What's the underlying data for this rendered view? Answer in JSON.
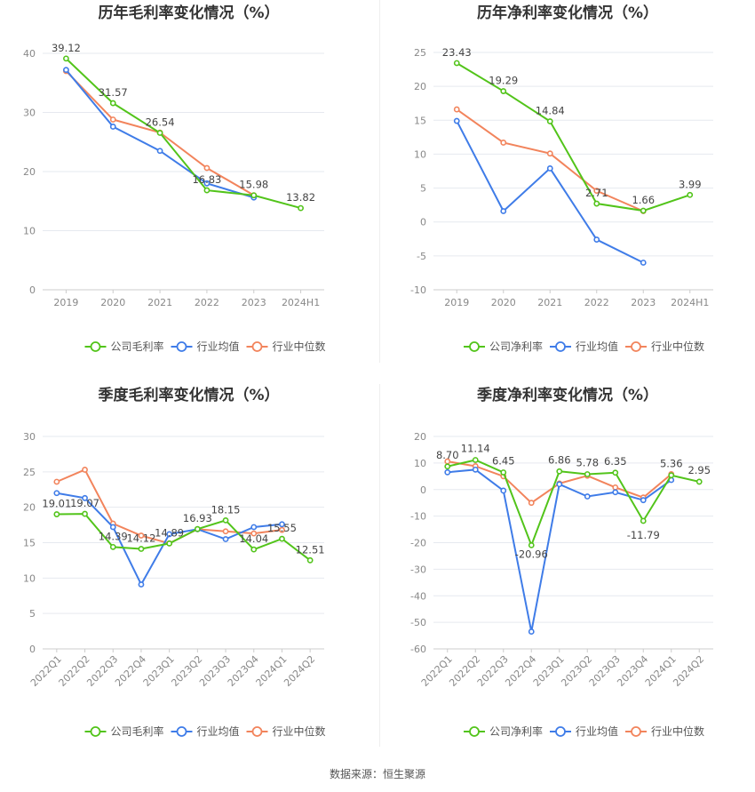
{
  "colors": {
    "company": "#52c41a",
    "industry_avg": "#3f7ce8",
    "industry_median": "#f2845c"
  },
  "source": "数据来源：恒生聚源",
  "chart_data": [
    {
      "type": "line",
      "title": "历年毛利率变化情况（%）",
      "categories": [
        "2019",
        "2020",
        "2021",
        "2022",
        "2023",
        "2024H1"
      ],
      "ylim": [
        0,
        40
      ],
      "yticks": [
        0,
        10,
        20,
        30,
        40
      ],
      "legend": [
        "公司毛利率",
        "行业均值",
        "行业中位数"
      ],
      "series": [
        {
          "name": "公司毛利率",
          "values": [
            39.12,
            31.57,
            26.54,
            16.83,
            15.98,
            13.82
          ],
          "labels": [
            "39.12",
            "31.57",
            "26.54",
            "16.83",
            "15.98",
            "13.82"
          ]
        },
        {
          "name": "行业均值",
          "values": [
            37.2,
            27.6,
            23.5,
            18.0,
            15.6,
            null
          ]
        },
        {
          "name": "行业中位数",
          "values": [
            37.0,
            28.8,
            26.6,
            20.6,
            16.0,
            null
          ]
        }
      ]
    },
    {
      "type": "line",
      "title": "历年净利率变化情况（%）",
      "categories": [
        "2019",
        "2020",
        "2021",
        "2022",
        "2023",
        "2024H1"
      ],
      "ylim": [
        -10,
        25
      ],
      "yticks": [
        -10,
        -5,
        0,
        5,
        10,
        15,
        20,
        25
      ],
      "legend": [
        "公司净利率",
        "行业均值",
        "行业中位数"
      ],
      "series": [
        {
          "name": "公司净利率",
          "values": [
            23.43,
            19.29,
            14.84,
            2.71,
            1.66,
            3.99
          ],
          "labels": [
            "23.43",
            "19.29",
            "14.84",
            "2.71",
            "1.66",
            "3.99"
          ]
        },
        {
          "name": "行业均值",
          "values": [
            14.9,
            1.6,
            7.9,
            -2.6,
            -6.0,
            null
          ]
        },
        {
          "name": "行业中位数",
          "values": [
            16.6,
            11.7,
            10.1,
            4.6,
            1.6,
            null
          ]
        }
      ]
    },
    {
      "type": "line",
      "title": "季度毛利率变化情况（%）",
      "categories": [
        "2022Q1",
        "2022Q2",
        "2022Q3",
        "2022Q4",
        "2023Q1",
        "2023Q2",
        "2023Q3",
        "2023Q4",
        "2024Q1",
        "2024Q2"
      ],
      "ylim": [
        0,
        30
      ],
      "yticks": [
        0,
        5,
        10,
        15,
        20,
        25,
        30
      ],
      "legend": [
        "公司毛利率",
        "行业均值",
        "行业中位数"
      ],
      "series": [
        {
          "name": "公司毛利率",
          "values": [
            19.01,
            19.07,
            14.39,
            14.12,
            14.89,
            16.93,
            18.15,
            14.04,
            15.55,
            12.51
          ],
          "labels": [
            "19.01",
            "19.07",
            "14.39",
            "14.12",
            "14.89",
            "16.93",
            "18.15",
            "14.04",
            "15.55",
            "12.51"
          ]
        },
        {
          "name": "行业均值",
          "values": [
            22.0,
            21.3,
            17.2,
            9.1,
            16.2,
            16.9,
            15.5,
            17.2,
            17.6,
            null
          ]
        },
        {
          "name": "行业中位数",
          "values": [
            23.6,
            25.3,
            17.7,
            16.0,
            14.9,
            16.9,
            16.6,
            16.3,
            16.8,
            null
          ]
        }
      ]
    },
    {
      "type": "line",
      "title": "季度净利率变化情况（%）",
      "categories": [
        "2022Q1",
        "2022Q2",
        "2022Q3",
        "2022Q4",
        "2023Q1",
        "2023Q2",
        "2023Q3",
        "2023Q4",
        "2024Q1",
        "2024Q2"
      ],
      "ylim": [
        -60,
        20
      ],
      "yticks": [
        -60,
        -50,
        -40,
        -30,
        -20,
        -10,
        0,
        10,
        20
      ],
      "legend": [
        "公司净利率",
        "行业均值",
        "行业中位数"
      ],
      "series": [
        {
          "name": "公司净利率",
          "values": [
            8.7,
            11.14,
            6.45,
            -20.96,
            6.86,
            5.78,
            6.35,
            -11.79,
            5.36,
            2.95
          ],
          "labels": [
            "8.70",
            "11.14",
            "6.45",
            "-20.96",
            "6.86",
            "5.78",
            "6.35",
            "-11.79",
            "5.36",
            "2.95"
          ]
        },
        {
          "name": "行业均值",
          "values": [
            6.5,
            7.5,
            -0.4,
            -53.5,
            2.0,
            -2.6,
            -1.0,
            -4.0,
            3.6,
            null
          ]
        },
        {
          "name": "行业中位数",
          "values": [
            10.6,
            8.8,
            5.0,
            -5.0,
            2.3,
            5.2,
            0.8,
            -3.0,
            5.8,
            null
          ]
        }
      ]
    }
  ]
}
